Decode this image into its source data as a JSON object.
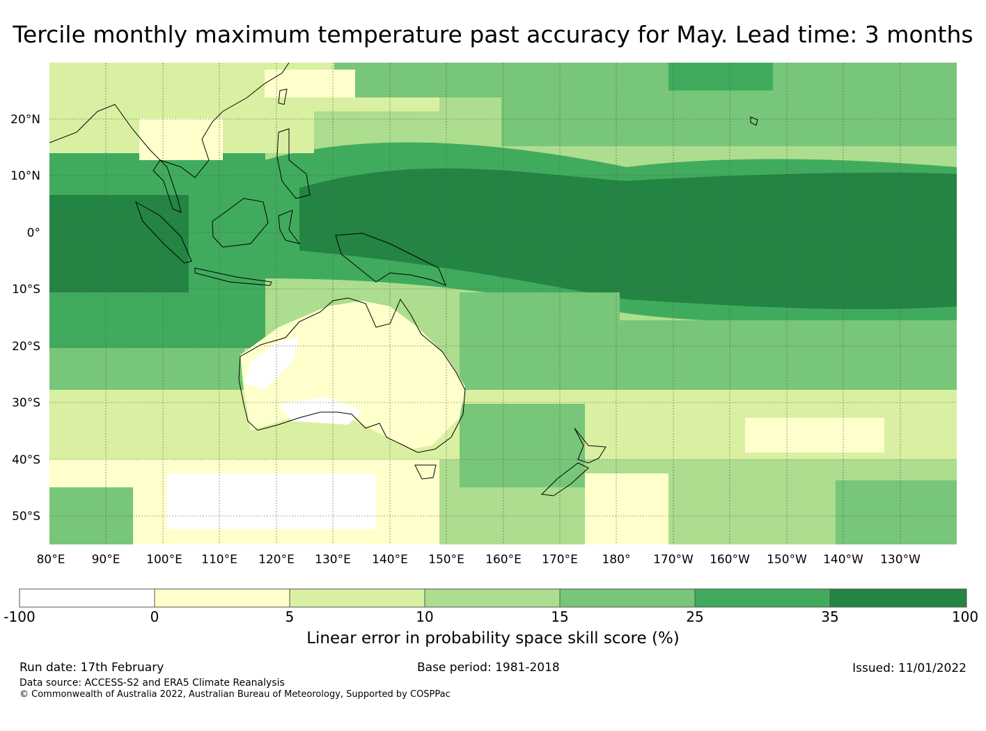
{
  "title": "Tercile monthly maximum temperature past accuracy for May. Lead time: 3 months",
  "map": {
    "lon_labels": [
      "80°E",
      "90°E",
      "100°E",
      "110°E",
      "120°E",
      "130°E",
      "140°E",
      "150°E",
      "160°E",
      "170°E",
      "180°",
      "170°W",
      "160°W",
      "150°W",
      "140°W",
      "130°W"
    ],
    "lat_labels": [
      "20°N",
      "10°N",
      "0°",
      "10°S",
      "20°S",
      "30°S",
      "40°S",
      "50°S"
    ],
    "extent": {
      "lon_min": 80,
      "lon_max": 240,
      "lat_min": -55,
      "lat_max": 30
    }
  },
  "legend": {
    "label": "Linear error in probability space skill score (%)",
    "ticks": [
      "-100",
      "0",
      "5",
      "10",
      "15",
      "25",
      "35",
      "100"
    ],
    "colors": [
      "#ffffff",
      "#ffffcc",
      "#d9f0a3",
      "#addd8e",
      "#78c679",
      "#41ab5d",
      "#238443"
    ]
  },
  "footer": {
    "run_date": "Run date: 17th February",
    "base_period": "Base period: 1981-2018",
    "issued": "Issued: 11/01/2022",
    "data_source": "Data source: ACCESS-S2 and ERA5 Climate Reanalysis",
    "copyright": "© Commonwealth of Australia 2022, Australian Bureau of Meteorology, Supported by COSPPac"
  }
}
